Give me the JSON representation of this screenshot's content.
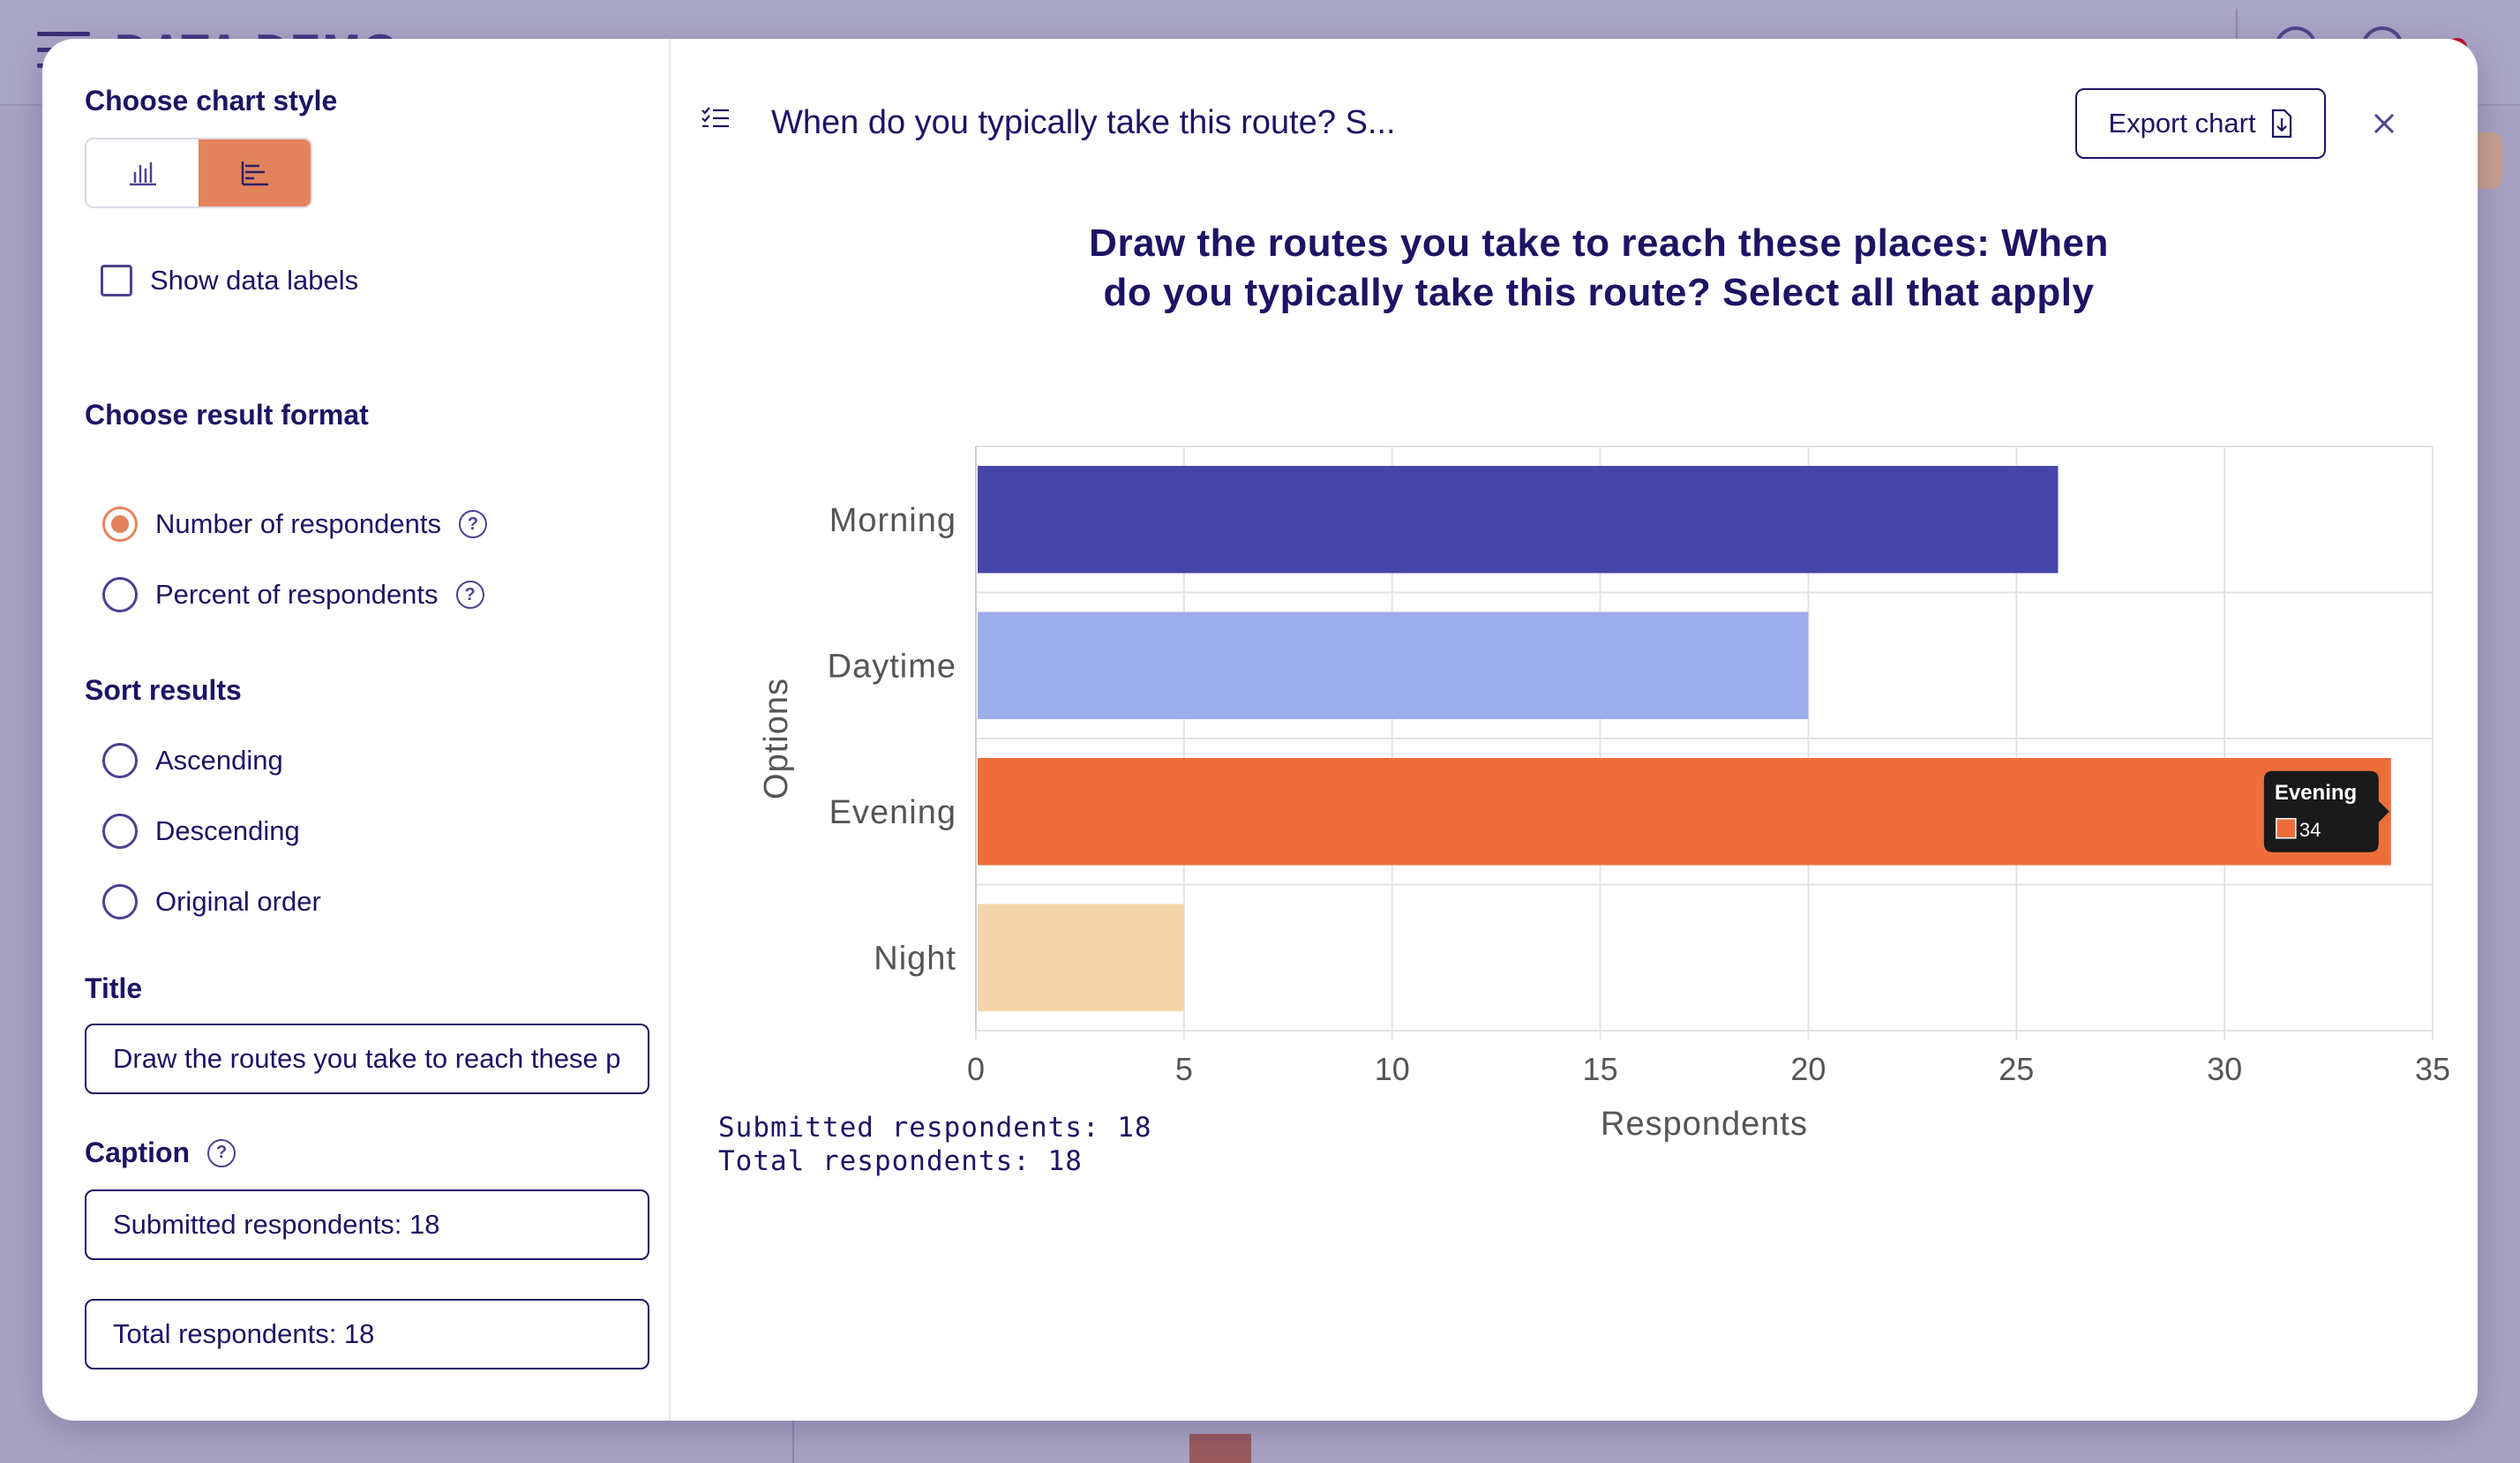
{
  "background": {
    "brand": "DATA DEMO"
  },
  "sidebar": {
    "chart_style_title": "Choose chart style",
    "show_data_labels": "Show data labels",
    "result_format_title": "Choose result format",
    "result_format_options": [
      {
        "label": "Number of respondents",
        "checked": true
      },
      {
        "label": "Percent of respondents",
        "checked": false
      }
    ],
    "sort_title": "Sort results",
    "sort_options": [
      {
        "label": "Ascending"
      },
      {
        "label": "Descending"
      },
      {
        "label": "Original order"
      }
    ],
    "title_label": "Title",
    "title_value": "Draw the routes you take to reach these places: When do you typically take this route? Select all that apply",
    "caption_label": "Caption",
    "caption_line1": "Submitted respondents: 18",
    "caption_line2": "Total respondents: 18"
  },
  "header": {
    "title": "When do you typically take this route? S...",
    "export_label": "Export chart"
  },
  "colors": {
    "accent": "#e3835b",
    "primary_text": "#1c1464"
  },
  "chart_data": {
    "type": "bar",
    "orientation": "horizontal",
    "title": "Draw the routes you take to reach these places: When do you typically take this route? Select all that apply",
    "title_lines": [
      "Draw the routes you take to reach these places: When",
      "do you typically take this route? Select all that apply"
    ],
    "categories": [
      "Morning",
      "Daytime",
      "Evening",
      "Night"
    ],
    "values": [
      26,
      20,
      34,
      5
    ],
    "colors": [
      "#4646aa",
      "#9dacea",
      "#ee6d3a",
      "#f3d5a8"
    ],
    "xlabel": "Respondents",
    "ylabel": "Options",
    "xlim": [
      0,
      35
    ],
    "ticks": [
      0,
      5,
      10,
      15,
      20,
      25,
      30,
      35
    ],
    "tooltip": {
      "label": "Evening",
      "value": "34"
    },
    "caption": [
      "Submitted respondents: 18",
      "Total respondents: 18"
    ]
  }
}
